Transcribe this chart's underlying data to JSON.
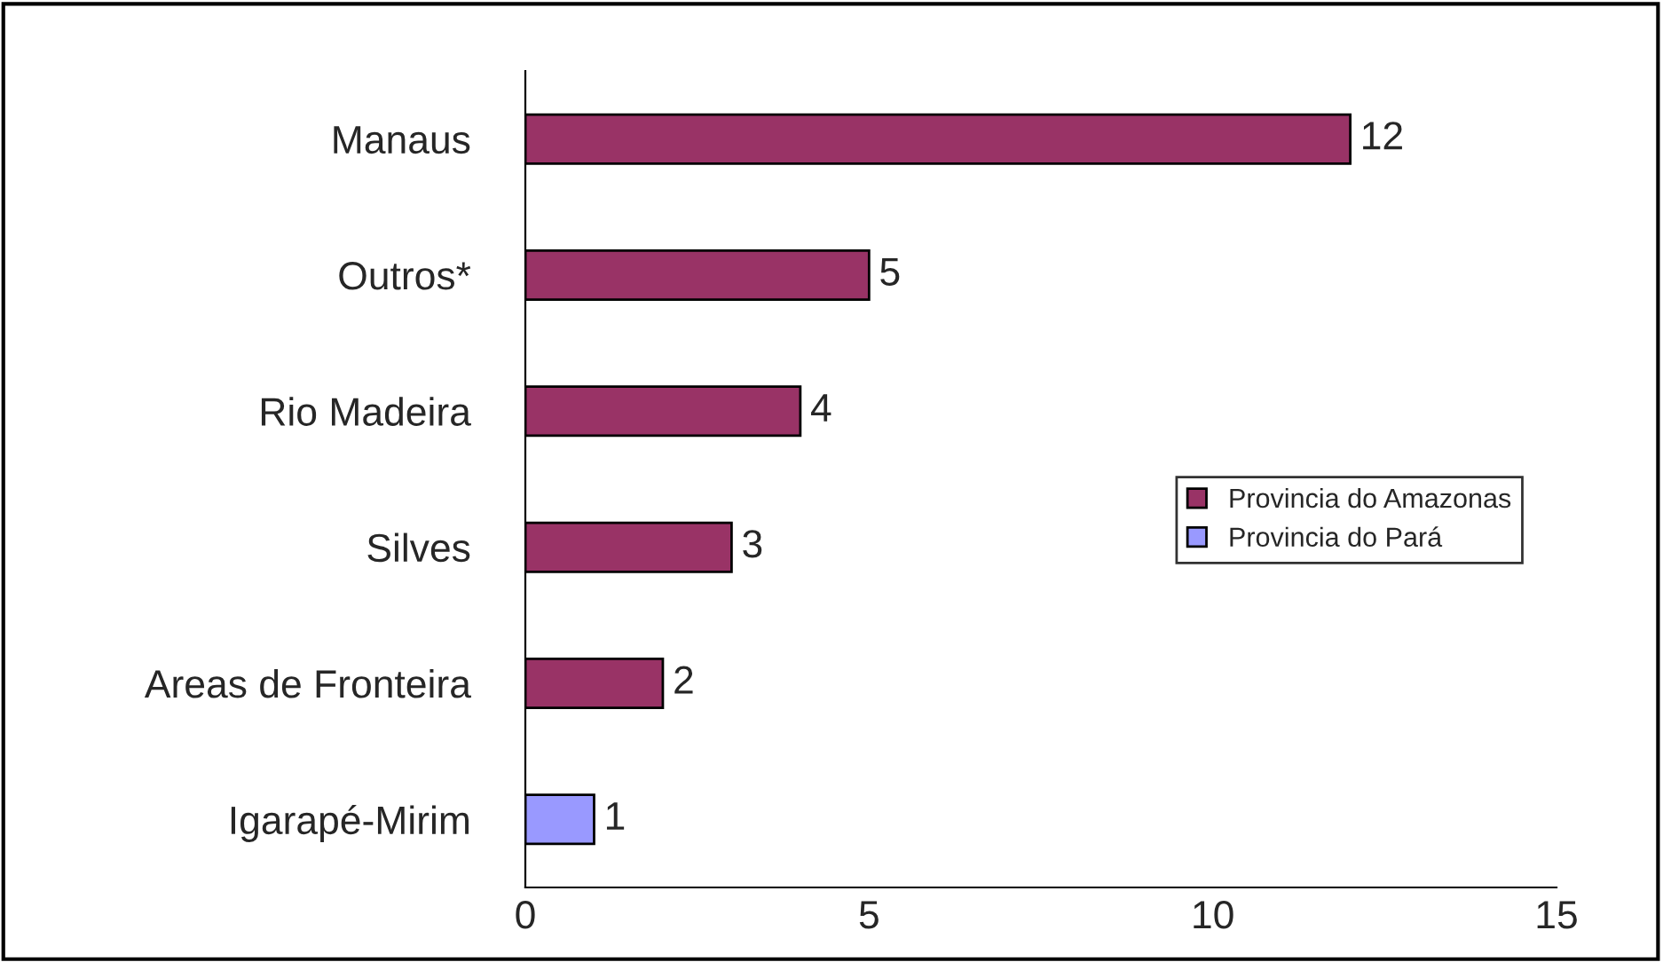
{
  "chart_data": {
    "type": "bar",
    "orientation": "horizontal",
    "categories": [
      "Manaus",
      "Outros*",
      "Rio Madeira",
      "Silves",
      "Areas de Fronteira",
      "Igarapé-Mirim"
    ],
    "series": [
      {
        "name": "Provincia do Amazonas",
        "color": "#993366",
        "values": [
          12,
          5,
          4,
          3,
          2,
          null
        ]
      },
      {
        "name": "Provincia do Pará",
        "color": "#9999ff",
        "values": [
          null,
          null,
          null,
          null,
          null,
          1
        ]
      }
    ],
    "xlim": [
      0,
      15
    ],
    "xticks": [
      0,
      5,
      10,
      15
    ],
    "data_labels": true,
    "legend": "right",
    "grid": false
  }
}
